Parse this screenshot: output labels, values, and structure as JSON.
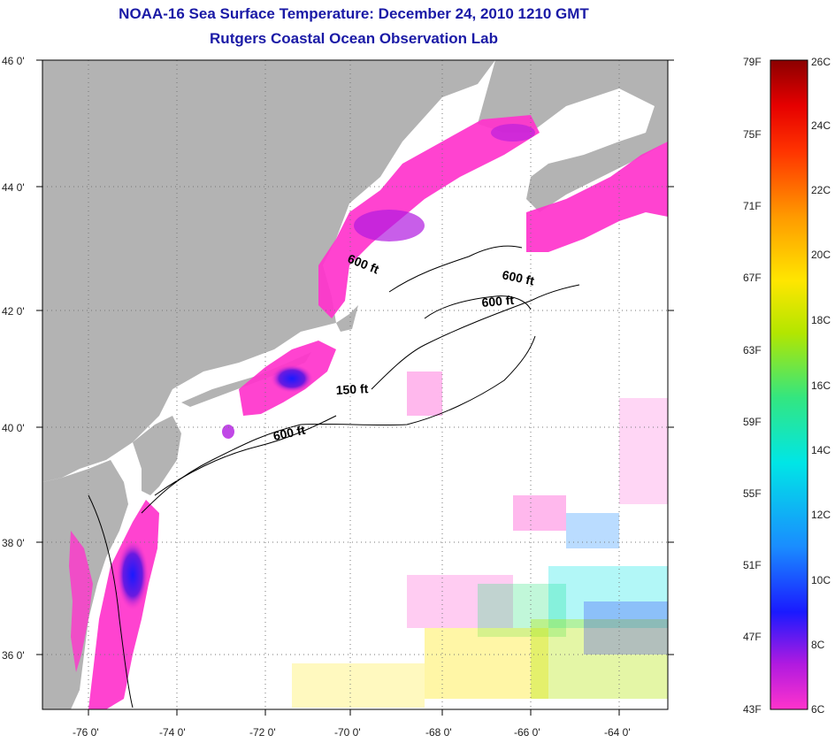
{
  "title": {
    "line1": "NOAA-16 Sea Surface Temperature:  December 24, 2010 1210 GMT",
    "line2": "Rutgers Coastal Ocean Observation Lab"
  },
  "map": {
    "lat_labels": [
      "46 0'",
      "44 0'",
      "42 0'",
      "40 0'",
      "38 0'",
      "36 0'"
    ],
    "lon_labels": [
      "-76 0'",
      "-74 0'",
      "-72 0'",
      "-70 0'",
      "-68 0'",
      "-66 0'",
      "-64 0'"
    ],
    "contour_labels": [
      "600 ft",
      "600 ft",
      "600 ft",
      "150 ft",
      "600 ft"
    ],
    "land_color": "#b3b3b3",
    "water_color": "#ffffff"
  },
  "colorbar": {
    "fahrenheit": [
      "79F",
      "75F",
      "71F",
      "67F",
      "63F",
      "59F",
      "55F",
      "51F",
      "47F",
      "43F"
    ],
    "celsius": [
      "26C",
      "24C",
      "22C",
      "20C",
      "18C",
      "16C",
      "14C",
      "12C",
      "10C",
      "8C",
      "6C"
    ],
    "colors": [
      "#ff33cc",
      "#8a1adb",
      "#1a1aff",
      "#1a8cff",
      "#00e6e6",
      "#33e680",
      "#b3e600",
      "#ffe600",
      "#ff9900",
      "#ff3300",
      "#e60000",
      "#8b0000"
    ]
  }
}
